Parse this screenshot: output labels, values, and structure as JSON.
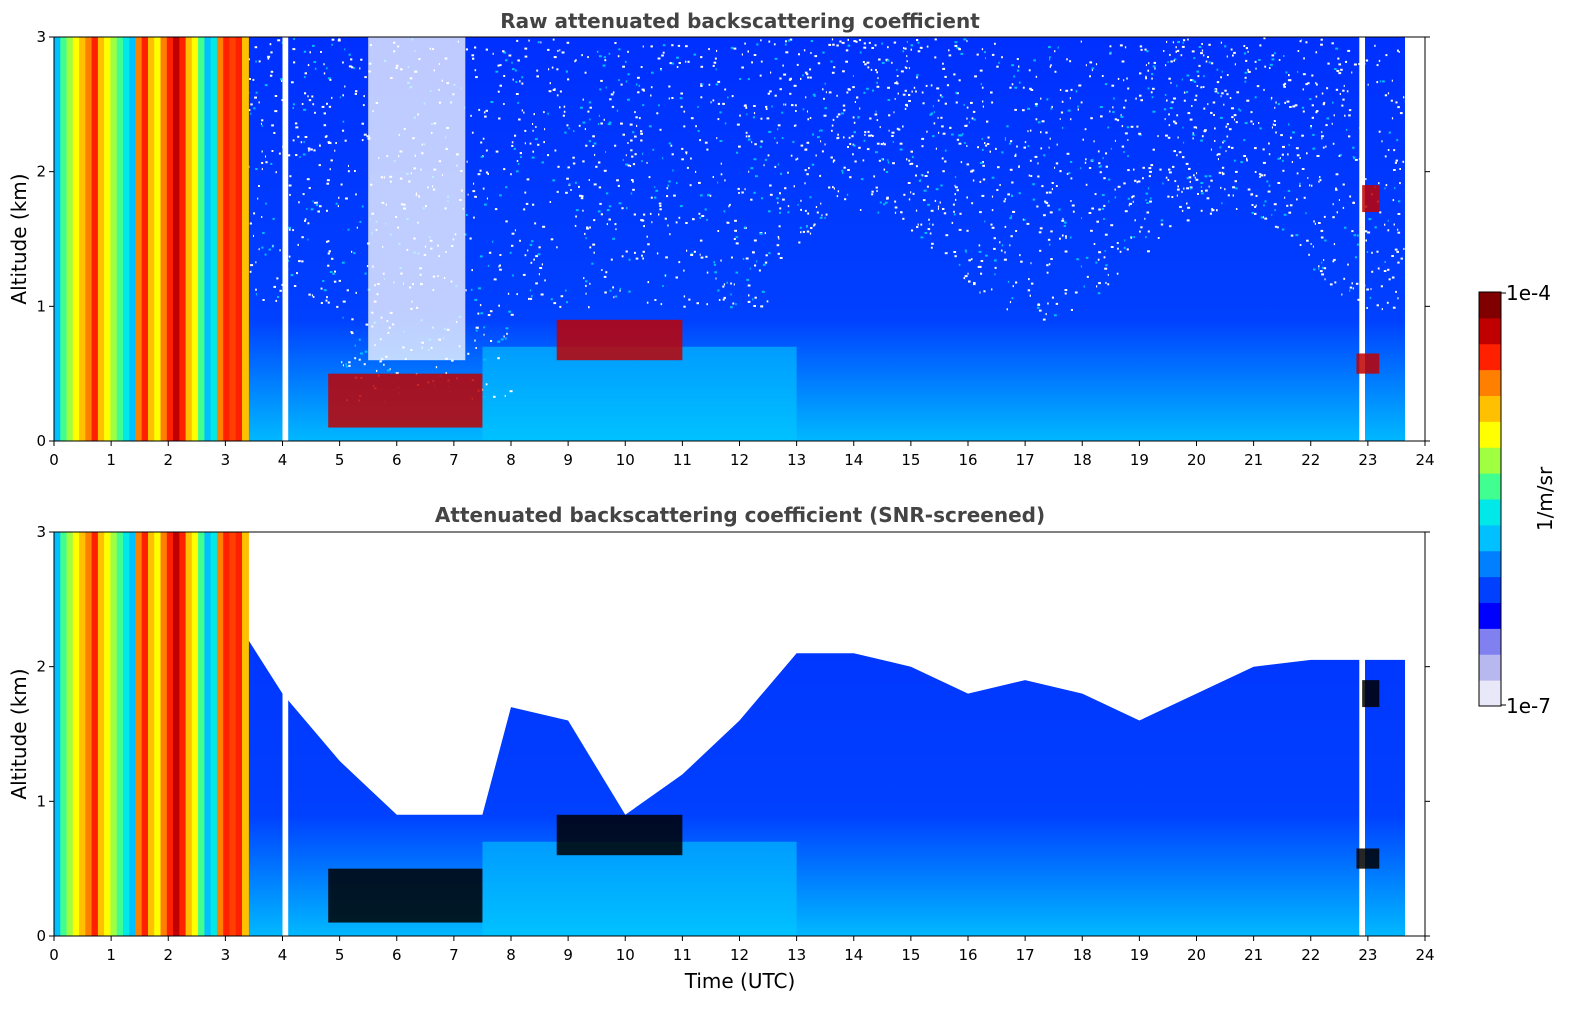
{
  "chart_data": [
    {
      "type": "heatmap",
      "title": "Raw attenuated backscattering coefficient",
      "xlabel": "",
      "ylabel": "Altitude (km)",
      "xlim": [
        0,
        24
      ],
      "ylim": [
        0,
        3
      ],
      "xticks": [
        "0",
        "1",
        "2",
        "3",
        "4",
        "5",
        "6",
        "7",
        "8",
        "9",
        "10",
        "11",
        "12",
        "13",
        "14",
        "15",
        "16",
        "17",
        "18",
        "19",
        "20",
        "21",
        "22",
        "23",
        "24"
      ],
      "yticks": [
        "0",
        "1",
        "2",
        "3"
      ],
      "data_end_time": 23.65,
      "features": [
        {
          "name": "",
          "x_range": [
            0.0,
            3.4
          ],
          "y_range": [
            0.0,
            3.0
          ],
          "level": "high"
        },
        {
          "name": "",
          "x_range": [
            4.8,
            7.5
          ],
          "y_range": [
            0.1,
            0.5
          ],
          "level": "very high"
        },
        {
          "name": "",
          "x_range": [
            8.8,
            11.0
          ],
          "y_range": [
            0.6,
            0.9
          ],
          "level": "very high"
        },
        {
          "name": "",
          "x_range": [
            22.8,
            23.2
          ],
          "y_range": [
            0.5,
            0.65
          ],
          "level": "very high"
        },
        {
          "name": "",
          "x_range": [
            22.9,
            23.2
          ],
          "y_range": [
            1.7,
            1.9
          ],
          "level": "very high"
        }
      ]
    },
    {
      "type": "heatmap",
      "title": "Attenuated backscattering coefficient (SNR-screened)",
      "xlabel": "Time (UTC)",
      "ylabel": "Altitude (km)",
      "xlim": [
        0,
        24
      ],
      "ylim": [
        0,
        3
      ],
      "xticks": [
        "0",
        "1",
        "2",
        "3",
        "4",
        "5",
        "6",
        "7",
        "8",
        "9",
        "10",
        "11",
        "12",
        "13",
        "14",
        "15",
        "16",
        "17",
        "18",
        "19",
        "20",
        "21",
        "22",
        "23",
        "24"
      ],
      "yticks": [
        "0",
        "1",
        "2",
        "3"
      ],
      "data_end_time": 23.65,
      "screened_boundary": [
        [
          3.4,
          2.2
        ],
        [
          4.0,
          1.8
        ],
        [
          5.0,
          1.3
        ],
        [
          6.0,
          0.9
        ],
        [
          7.5,
          0.9
        ],
        [
          8.0,
          1.7
        ],
        [
          9.0,
          1.6
        ],
        [
          10.0,
          0.9
        ],
        [
          11.0,
          1.2
        ],
        [
          12.0,
          1.6
        ],
        [
          13.0,
          2.1
        ],
        [
          14.0,
          2.1
        ],
        [
          15.0,
          2.0
        ],
        [
          16.0,
          1.8
        ],
        [
          17.0,
          1.9
        ],
        [
          18.0,
          1.8
        ],
        [
          19.0,
          1.6
        ],
        [
          20.0,
          1.8
        ],
        [
          21.0,
          2.0
        ],
        [
          22.0,
          2.05
        ],
        [
          23.65,
          2.05
        ]
      ]
    }
  ],
  "colorbar": {
    "max_label": "1e-4",
    "min_label": "1e-7",
    "label": "1/m/sr",
    "colors": [
      "#e8e8f8",
      "#b8b8f0",
      "#8080f0",
      "#0000ff",
      "#0040ff",
      "#0080ff",
      "#00c0ff",
      "#00e8e8",
      "#40ff90",
      "#a0ff40",
      "#ffff00",
      "#ffc000",
      "#ff8000",
      "#ff2000",
      "#c00000",
      "#800000"
    ]
  }
}
